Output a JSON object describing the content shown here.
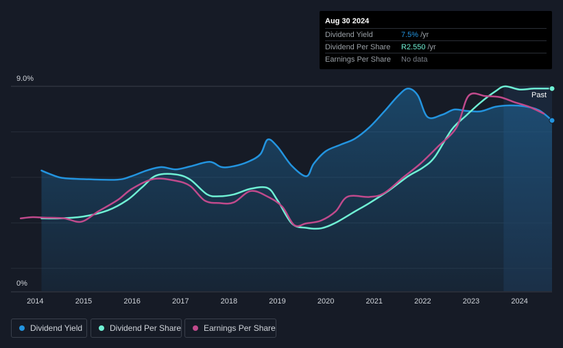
{
  "tooltip": {
    "date": "Aug 30 2024",
    "rows": [
      {
        "label": "Dividend Yield",
        "value": "7.5%",
        "unit": "/yr",
        "color": "#2394df"
      },
      {
        "label": "Dividend Per Share",
        "value": "R2.550",
        "unit": "/yr",
        "color": "#6ff0d4"
      },
      {
        "label": "Earnings Per Share",
        "value": "No data",
        "unit": "",
        "color": "#7a7f88"
      }
    ]
  },
  "chart_data": {
    "type": "line",
    "y_axis_labels": [
      "9.0%",
      "0%"
    ],
    "ylim": [
      0,
      9.0
    ],
    "xlim": [
      2013.5,
      2024.67
    ],
    "x_ticks": [
      2014,
      2015,
      2016,
      2017,
      2018,
      2019,
      2020,
      2021,
      2022,
      2023,
      2024
    ],
    "past_label": "Past",
    "past_region_start": 2023.67,
    "series": [
      {
        "name": "Dividend Yield",
        "color": "#2394df",
        "filled": true,
        "points": [
          [
            2014.13,
            5.3
          ],
          [
            2014.3,
            5.15
          ],
          [
            2014.55,
            4.98
          ],
          [
            2015.0,
            4.92
          ],
          [
            2015.7,
            4.9
          ],
          [
            2016.0,
            5.06
          ],
          [
            2016.3,
            5.3
          ],
          [
            2016.6,
            5.45
          ],
          [
            2016.9,
            5.35
          ],
          [
            2017.2,
            5.48
          ],
          [
            2017.6,
            5.68
          ],
          [
            2017.85,
            5.45
          ],
          [
            2018.1,
            5.49
          ],
          [
            2018.4,
            5.69
          ],
          [
            2018.65,
            6.02
          ],
          [
            2018.8,
            6.66
          ],
          [
            2019.0,
            6.35
          ],
          [
            2019.3,
            5.5
          ],
          [
            2019.6,
            5.05
          ],
          [
            2019.75,
            5.6
          ],
          [
            2020.0,
            6.15
          ],
          [
            2020.3,
            6.43
          ],
          [
            2020.6,
            6.7
          ],
          [
            2020.9,
            7.2
          ],
          [
            2021.2,
            7.88
          ],
          [
            2021.5,
            8.6
          ],
          [
            2021.7,
            8.9
          ],
          [
            2021.9,
            8.6
          ],
          [
            2022.1,
            7.65
          ],
          [
            2022.4,
            7.75
          ],
          [
            2022.65,
            7.98
          ],
          [
            2022.9,
            7.92
          ],
          [
            2023.2,
            7.9
          ],
          [
            2023.5,
            8.1
          ],
          [
            2023.8,
            8.16
          ],
          [
            2024.1,
            8.12
          ],
          [
            2024.4,
            7.95
          ],
          [
            2024.67,
            7.5
          ]
        ]
      },
      {
        "name": "Dividend Per Share",
        "color": "#6ff0d4",
        "filled": false,
        "points": [
          [
            2014.13,
            3.2
          ],
          [
            2014.5,
            3.2
          ],
          [
            2015.0,
            3.28
          ],
          [
            2015.5,
            3.55
          ],
          [
            2015.9,
            4.0
          ],
          [
            2016.2,
            4.55
          ],
          [
            2016.5,
            5.08
          ],
          [
            2016.9,
            5.13
          ],
          [
            2017.2,
            4.9
          ],
          [
            2017.55,
            4.25
          ],
          [
            2017.8,
            4.17
          ],
          [
            2018.1,
            4.25
          ],
          [
            2018.45,
            4.5
          ],
          [
            2018.8,
            4.53
          ],
          [
            2019.0,
            4.0
          ],
          [
            2019.3,
            2.97
          ],
          [
            2019.6,
            2.78
          ],
          [
            2019.9,
            2.76
          ],
          [
            2020.2,
            3.0
          ],
          [
            2020.6,
            3.5
          ],
          [
            2020.9,
            3.87
          ],
          [
            2021.3,
            4.42
          ],
          [
            2021.7,
            5.05
          ],
          [
            2022.0,
            5.42
          ],
          [
            2022.25,
            5.9
          ],
          [
            2022.6,
            7.1
          ],
          [
            2022.9,
            7.72
          ],
          [
            2023.2,
            8.3
          ],
          [
            2023.5,
            8.78
          ],
          [
            2023.7,
            9.0
          ],
          [
            2024.0,
            8.86
          ],
          [
            2024.3,
            8.9
          ],
          [
            2024.67,
            8.9
          ]
        ]
      },
      {
        "name": "Earnings Per Share",
        "color": "#c04a8c",
        "filled": false,
        "points": [
          [
            2013.7,
            3.2
          ],
          [
            2013.95,
            3.25
          ],
          [
            2014.2,
            3.23
          ],
          [
            2014.6,
            3.2
          ],
          [
            2014.95,
            3.05
          ],
          [
            2015.3,
            3.5
          ],
          [
            2015.7,
            4.0
          ],
          [
            2016.0,
            4.5
          ],
          [
            2016.45,
            4.93
          ],
          [
            2016.9,
            4.85
          ],
          [
            2017.2,
            4.62
          ],
          [
            2017.5,
            3.98
          ],
          [
            2017.8,
            3.87
          ],
          [
            2018.1,
            3.9
          ],
          [
            2018.45,
            4.4
          ],
          [
            2018.8,
            4.15
          ],
          [
            2019.1,
            3.71
          ],
          [
            2019.35,
            2.9
          ],
          [
            2019.6,
            2.98
          ],
          [
            2019.9,
            3.1
          ],
          [
            2020.2,
            3.5
          ],
          [
            2020.45,
            4.15
          ],
          [
            2020.9,
            4.14
          ],
          [
            2021.2,
            4.3
          ],
          [
            2021.6,
            5.0
          ],
          [
            2021.95,
            5.6
          ],
          [
            2022.3,
            6.32
          ],
          [
            2022.7,
            7.2
          ],
          [
            2022.95,
            8.59
          ],
          [
            2023.3,
            8.57
          ],
          [
            2023.6,
            8.52
          ],
          [
            2023.9,
            8.3
          ],
          [
            2024.2,
            8.1
          ],
          [
            2024.5,
            7.8
          ]
        ]
      }
    ],
    "legend": [
      "Dividend Yield",
      "Dividend Per Share",
      "Earnings Per Share"
    ]
  }
}
